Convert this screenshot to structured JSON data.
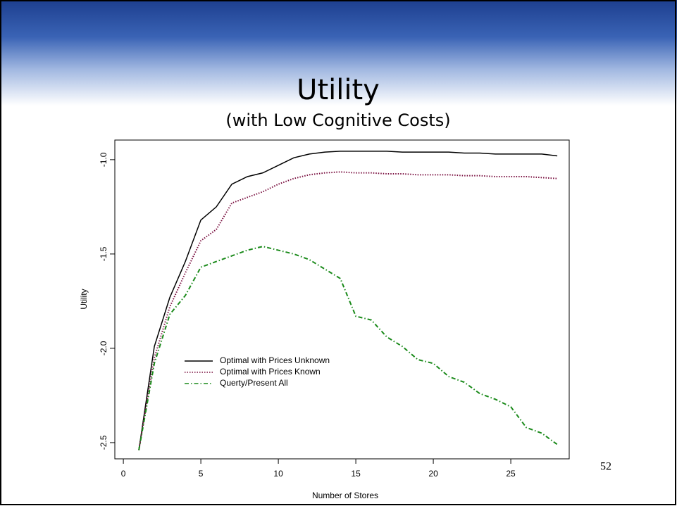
{
  "page_number": "52",
  "chart_data": {
    "type": "line",
    "title": "Utility",
    "subtitle": "(with Low Cognitive Costs)",
    "x_label": "Number of Stores",
    "y_label": "Utility",
    "x": [
      1,
      2,
      3,
      4,
      5,
      6,
      7,
      8,
      9,
      10,
      11,
      12,
      13,
      14,
      15,
      16,
      17,
      18,
      19,
      20,
      21,
      22,
      23,
      24,
      25,
      26,
      27,
      28
    ],
    "series": [
      {
        "name": "Optimal with Prices Unknown",
        "color": "#000000",
        "linestyle": "solid",
        "values": [
          -2.54,
          -1.99,
          -1.73,
          -1.54,
          -1.32,
          -1.25,
          -1.13,
          -1.09,
          -1.07,
          -1.03,
          -0.99,
          -0.97,
          -0.96,
          -0.955,
          -0.955,
          -0.955,
          -0.955,
          -0.96,
          -0.96,
          -0.96,
          -0.96,
          -0.965,
          -0.965,
          -0.97,
          -0.97,
          -0.97,
          -0.97,
          -0.98
        ]
      },
      {
        "name": "Optimal with Prices Known",
        "color": "#7a1040",
        "linestyle": "dotted",
        "values": [
          -2.54,
          -2.05,
          -1.78,
          -1.6,
          -1.43,
          -1.37,
          -1.23,
          -1.2,
          -1.17,
          -1.13,
          -1.1,
          -1.08,
          -1.07,
          -1.065,
          -1.07,
          -1.07,
          -1.075,
          -1.075,
          -1.08,
          -1.08,
          -1.08,
          -1.085,
          -1.085,
          -1.09,
          -1.09,
          -1.09,
          -1.095,
          -1.1
        ]
      },
      {
        "name": "Querty/Present All",
        "color": "#1a8a1a",
        "linestyle": "dashdot",
        "values": [
          -2.54,
          -2.08,
          -1.82,
          -1.72,
          -1.57,
          -1.54,
          -1.51,
          -1.48,
          -1.46,
          -1.48,
          -1.5,
          -1.53,
          -1.58,
          -1.63,
          -1.83,
          -1.85,
          -1.94,
          -1.99,
          -2.06,
          -2.08,
          -2.15,
          -2.18,
          -2.24,
          -2.27,
          -2.31,
          -2.42,
          -2.45,
          -2.51
        ]
      }
    ],
    "xlim": [
      -0.55,
      28.77
    ],
    "ylim": [
      -2.586,
      -0.896
    ],
    "xticks": [
      0,
      5,
      10,
      15,
      20,
      25
    ],
    "yticks": [
      {
        "value": -2.5,
        "label": "-2.5"
      },
      {
        "value": -2,
        "label": "-2.0"
      },
      {
        "value": -1.5,
        "label": "-1.5"
      },
      {
        "value": -1,
        "label": "-1.0"
      }
    ],
    "legend": "lower-left",
    "grid": false
  }
}
